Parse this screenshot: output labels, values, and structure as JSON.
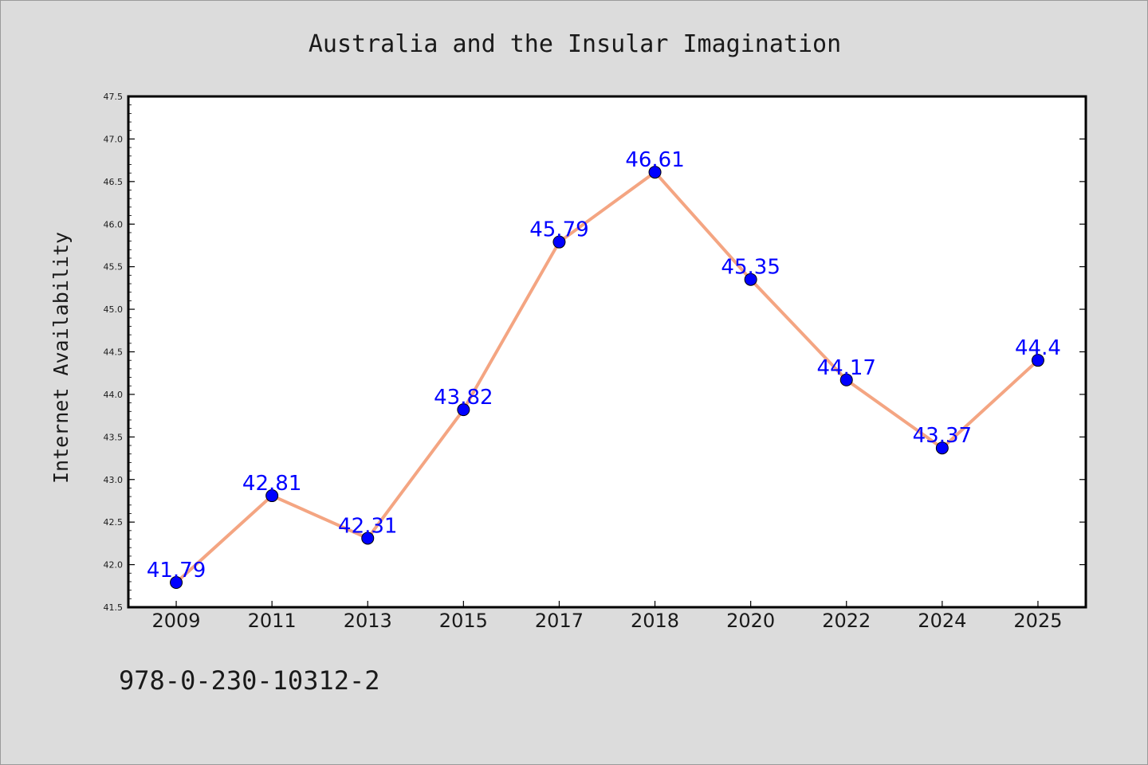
{
  "chart_data": {
    "type": "line",
    "title": "Australia and the Insular Imagination",
    "xlabel": "",
    "ylabel": "Internet Availability",
    "categories": [
      "2009",
      "2011",
      "2013",
      "2015",
      "2017",
      "2018",
      "2020",
      "2022",
      "2024",
      "2025"
    ],
    "series": [
      {
        "values": [
          41.79,
          42.81,
          42.31,
          43.82,
          45.79,
          46.61,
          45.35,
          44.17,
          43.37,
          44.4
        ],
        "labels": [
          "41.79",
          "42.81",
          "42.31",
          "43.82",
          "45.79",
          "46.61",
          "45.35",
          "44.17",
          "43.37",
          "44.4"
        ],
        "line_color": "#f4a582",
        "marker_color": "#0000ff",
        "label_color": "#0000ff"
      }
    ],
    "ylim": [
      41.5,
      47.5
    ],
    "yticks": [
      "41.5",
      "42.0",
      "42.5",
      "43.0",
      "43.5",
      "44.0",
      "44.5",
      "45.0",
      "45.5",
      "46.0",
      "46.5",
      "47.0",
      "47.5"
    ],
    "grid": false,
    "legend": "none"
  },
  "footer": {
    "isbn": "978-0-230-10312-2"
  },
  "colors": {
    "background": "#dcdcdc",
    "plot_background": "#ffffff",
    "axis": "#000000"
  }
}
